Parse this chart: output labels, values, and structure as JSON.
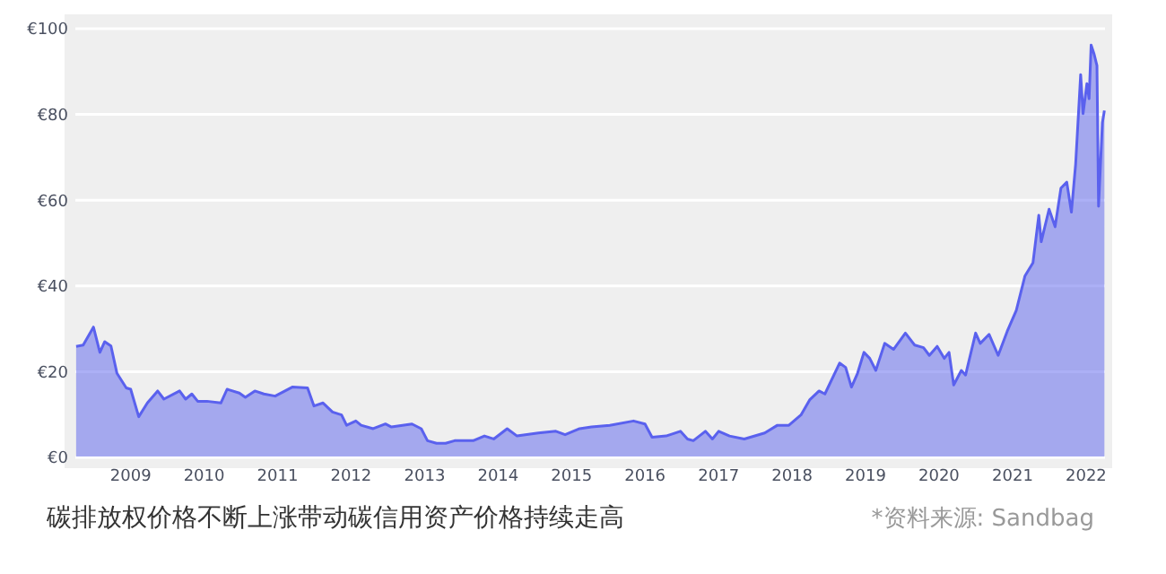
{
  "chart_data": {
    "type": "area",
    "title": "碳排放权价格不断上涨带动碳信用资产价格持续走高",
    "annotations": [
      "*资料来源: Sandbag"
    ],
    "xlim": [
      "2008-04-01",
      "2022-04-05"
    ],
    "xticks": [
      "2009",
      "2010",
      "2011",
      "2012",
      "2013",
      "2014",
      "2015",
      "2016",
      "2017",
      "2018",
      "2019",
      "2020",
      "2021",
      "2022"
    ],
    "ylim": [
      0,
      100
    ],
    "yticks": [
      {
        "value": 0,
        "label": "€0"
      },
      {
        "value": 20,
        "label": "€20"
      },
      {
        "value": 40,
        "label": "€40"
      },
      {
        "value": 60,
        "label": "€60"
      },
      {
        "value": 80,
        "label": "€80"
      },
      {
        "value": 100,
        "label": "€100"
      }
    ],
    "grid": "y",
    "series": [
      {
        "color": "#5a61ee",
        "x": [
          "2008-04-05",
          "2008-05-10",
          "2008-06-30",
          "2008-08-01",
          "2008-08-25",
          "2008-09-25",
          "2008-10-25",
          "2008-12-10",
          "2009-01-01",
          "2009-02-10",
          "2009-03-25",
          "2009-05-15",
          "2009-06-15",
          "2009-09-01",
          "2009-10-01",
          "2009-11-01",
          "2009-11-30",
          "2010-01-15",
          "2010-03-25",
          "2010-04-25",
          "2010-06-25",
          "2010-07-25",
          "2010-09-10",
          "2010-10-25",
          "2010-12-20",
          "2011-03-15",
          "2011-05-30",
          "2011-07-01",
          "2011-08-15",
          "2011-10-01",
          "2011-11-15",
          "2011-12-10",
          "2012-01-25",
          "2012-02-20",
          "2012-04-20",
          "2012-06-20",
          "2012-07-20",
          "2012-10-30",
          "2012-12-15",
          "2013-01-15",
          "2013-03-01",
          "2013-04-15",
          "2013-05-30",
          "2013-08-30",
          "2013-10-25",
          "2013-12-10",
          "2014-02-15",
          "2014-04-05",
          "2014-07-20",
          "2014-10-15",
          "2014-11-30",
          "2015-02-10",
          "2015-04-10",
          "2015-07-10",
          "2015-11-05",
          "2016-01-01",
          "2016-02-05",
          "2016-04-15",
          "2016-06-25",
          "2016-07-30",
          "2016-08-28",
          "2016-10-27",
          "2016-12-01",
          "2017-01-01",
          "2017-02-24",
          "2017-05-08",
          "2017-08-18",
          "2017-10-20",
          "2017-12-16",
          "2018-02-14",
          "2018-03-29",
          "2018-05-15",
          "2018-06-13",
          "2018-08-25",
          "2018-09-24",
          "2018-10-23",
          "2018-11-22",
          "2018-12-24",
          "2019-01-22",
          "2019-02-21",
          "2019-04-06",
          "2019-05-20",
          "2019-07-18",
          "2019-09-02",
          "2019-10-16",
          "2019-11-14",
          "2019-12-23",
          "2020-01-27",
          "2020-02-20",
          "2020-03-14",
          "2020-04-21",
          "2020-05-12",
          "2020-07-01",
          "2020-07-24",
          "2020-09-06",
          "2020-10-21",
          "2020-12-05",
          "2021-01-19",
          "2021-03-03",
          "2021-04-12",
          "2021-05-11",
          "2021-05-23",
          "2021-07-01",
          "2021-07-31",
          "2021-08-29",
          "2021-09-27",
          "2021-10-20",
          "2021-11-10",
          "2021-12-05",
          "2021-12-17",
          "2022-01-05",
          "2022-01-16",
          "2022-01-26",
          "2022-02-09",
          "2022-02-24",
          "2022-03-04",
          "2022-03-23",
          "2022-04-02"
        ],
        "values": [
          25.9,
          26.2,
          30.4,
          24.5,
          27,
          26,
          19.6,
          16.2,
          15.9,
          9.5,
          12.7,
          15.5,
          13.6,
          15.5,
          13.6,
          14.8,
          13.1,
          13.1,
          12.7,
          15.9,
          15,
          14,
          15.5,
          14.8,
          14.3,
          16.4,
          16.2,
          12,
          12.7,
          10.6,
          9.9,
          7.5,
          8.5,
          7.5,
          6.7,
          7.8,
          7.1,
          7.8,
          6.7,
          3.9,
          3.3,
          3.3,
          3.9,
          3.9,
          5,
          4.3,
          6.7,
          5,
          5.7,
          6.1,
          5.3,
          6.7,
          7.1,
          7.5,
          8.5,
          7.8,
          4.7,
          5,
          6.1,
          4.3,
          3.9,
          6.1,
          4.3,
          6.1,
          5,
          4.3,
          5.7,
          7.5,
          7.5,
          9.9,
          13.4,
          15.5,
          14.8,
          22,
          21,
          16.4,
          19.6,
          24.5,
          23.1,
          20.3,
          26.6,
          25.2,
          29,
          26.2,
          25.6,
          23.8,
          25.9,
          23.1,
          24.5,
          16.9,
          20.3,
          19.2,
          29,
          26.6,
          28.7,
          23.8,
          29.4,
          34.3,
          42.3,
          45.4,
          56.5,
          50.3,
          57.9,
          53.8,
          62.8,
          64.2,
          57.2,
          68.4,
          89.3,
          80.2,
          87.2,
          83.7,
          96.2,
          94.2,
          91.4,
          58.6,
          78.1,
          80.9
        ]
      }
    ]
  }
}
